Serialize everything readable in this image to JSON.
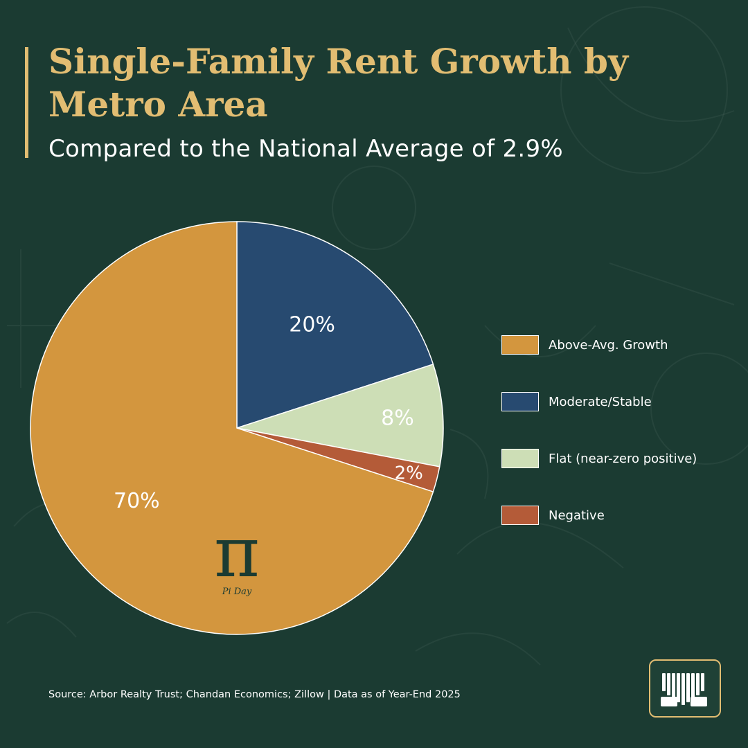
{
  "title": "Single-Family Rent Growth by Metro Area",
  "subtitle": "Compared to the National Average of 2.9%",
  "chart_data": {
    "type": "pie",
    "title": "Single-Family Rent Growth by Metro Area",
    "subtitle": "Compared to the National Average of 2.9%",
    "slices": [
      {
        "label": "Moderate/Stable",
        "value": 20,
        "display": "20%",
        "color": "#274a70"
      },
      {
        "label": "Flat (near-zero positive)",
        "value": 8,
        "display": "8%",
        "color": "#cddeb6"
      },
      {
        "label": "Negative",
        "value": 2,
        "display": "2%",
        "color": "#b45b38"
      },
      {
        "label": "Above-Avg. Growth",
        "value": 70,
        "display": "70%",
        "color": "#d3963e"
      }
    ],
    "legend_order": [
      "Above-Avg. Growth",
      "Moderate/Stable",
      "Flat (near-zero positive)",
      "Negative"
    ],
    "legend_position": "right"
  },
  "watermark": {
    "symbol": "π",
    "caption": "Pi Day"
  },
  "source": "Source: Arbor Realty Trust; Chandan Economics; Zillow | Data as of Year-End 2025",
  "colors": {
    "background": "#1b3b32",
    "accent": "#e2bd72",
    "slice_border": "#ffffff"
  },
  "logo": {
    "icon": "brand-logo-icon"
  }
}
